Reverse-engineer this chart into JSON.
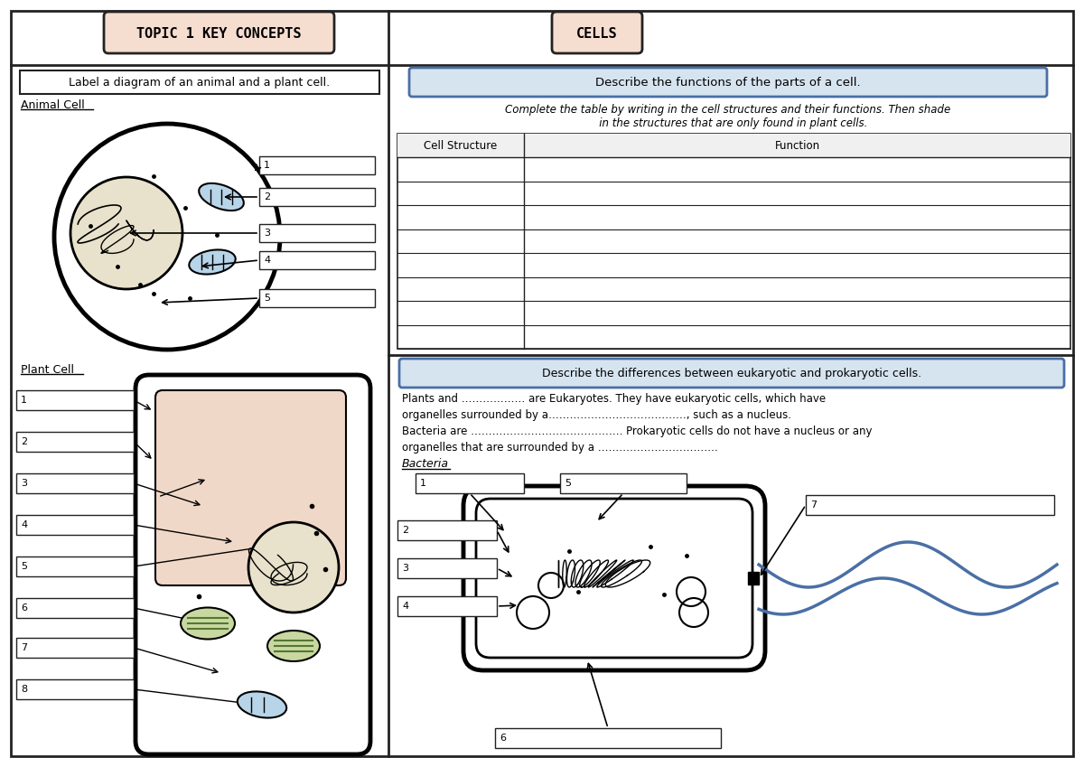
{
  "title_left": "TOPIC 1 KEY CONCEPTS",
  "title_right": "CELLS",
  "title_bg": "#f5ddd0",
  "box_border": "#222222",
  "blue_border": "#4a6fa5",
  "light_blue_fill": "#d6e4f0",
  "bg_color": "#ffffff",
  "animal_nucleus_color": "#e8e2cc",
  "mitochondria_color": "#b8d4e8",
  "plant_vacuole_color": "#f0d8c8",
  "chloroplast_color": "#c8d8a0",
  "section_left_label": "Label a diagram of an animal and a plant cell.",
  "section_right_label1": "Describe the functions of the parts of a cell.",
  "section_right_label2": "Complete the table by writing in the cell structures and their functions. Then shade\n   in the structures that are only found in plant cells.",
  "eukaryotic_label": "Describe the differences between eukaryotic and prokaryotic cells.",
  "eukaryotic_text1": "Plants and ……………… are Eukaryotes. They have eukaryotic cells, which have",
  "eukaryotic_text2": "organelles surrounded by a…………………………………, such as a nucleus.",
  "eukaryotic_text3": "Bacteria are ……………………………………. Prokaryotic cells do not have a nucleus or any",
  "eukaryotic_text4": "organelles that are surrounded by a …………………………….",
  "bacteria_label": "Bacteria"
}
